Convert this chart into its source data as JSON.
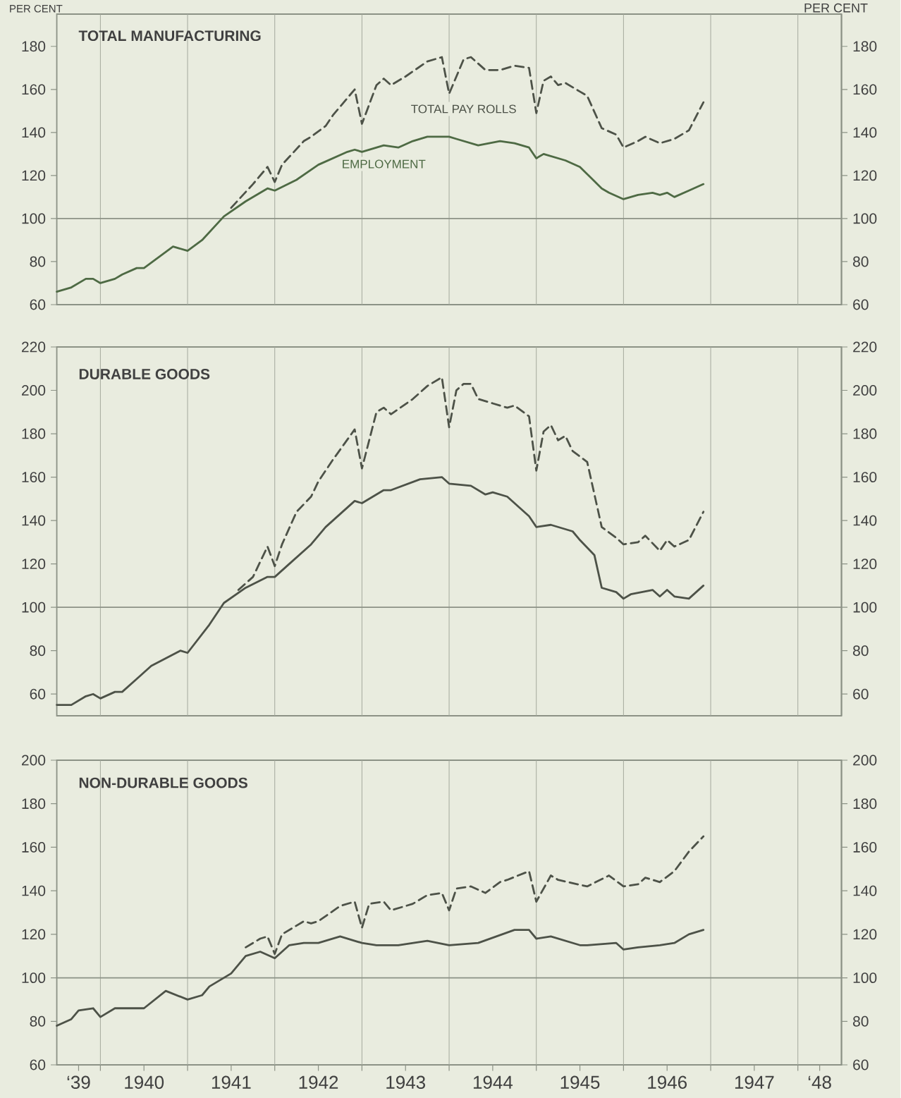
{
  "chart_data": [
    {
      "type": "line",
      "title": "TOTAL MANUFACTURING",
      "ylabel": "PER CENT",
      "y2label": "PER CENT",
      "xlim": [
        "1939-07",
        "1948-07"
      ],
      "ylim": [
        60,
        195
      ],
      "y2lim": [
        60,
        195
      ],
      "grid": "x",
      "tick_labels": "y",
      "xticks": [
        {
          "value": "1940-01",
          "label": null
        },
        {
          "value": "1941-01",
          "label": null
        },
        {
          "value": "1942-01",
          "label": null
        },
        {
          "value": "1943-01",
          "label": null
        },
        {
          "value": "1944-01",
          "label": null
        },
        {
          "value": "1945-01",
          "label": null
        },
        {
          "value": "1946-01",
          "label": null
        },
        {
          "value": "1947-01",
          "label": null
        },
        {
          "value": "1948-01",
          "label": null
        }
      ],
      "yticks": [
        60,
        80,
        100,
        120,
        140,
        160,
        180
      ],
      "y2ticks": [
        60,
        80,
        100,
        120,
        140,
        160,
        180
      ],
      "ref_lines": [
        {
          "axis": "y",
          "value": 100
        }
      ],
      "series": [
        {
          "name": "TOTAL PAY ROLLS",
          "color": "#4d5248",
          "line_style": "dashed",
          "x": [
            "1941-07",
            "1941-10",
            "1941-12",
            "1942-01",
            "1942-02",
            "1942-05",
            "1942-06",
            "1942-08",
            "1942-09",
            "1942-12",
            "1943-01",
            "1943-03",
            "1943-04",
            "1943-05",
            "1943-07",
            "1943-10",
            "1943-12",
            "1944-01",
            "1944-03",
            "1944-04",
            "1944-06",
            "1944-08",
            "1944-10",
            "1944-12",
            "1945-01",
            "1945-02",
            "1945-03",
            "1945-04",
            "1945-05",
            "1945-07",
            "1945-08",
            "1945-10",
            "1945-12",
            "1946-01",
            "1946-03",
            "1946-04",
            "1946-06",
            "1946-08",
            "1946-10",
            "1946-12"
          ],
          "values": [
            105,
            116,
            124,
            117,
            125,
            136,
            138,
            143,
            148,
            160,
            144,
            162,
            165,
            162,
            166,
            173,
            175,
            158,
            174,
            175,
            169,
            169,
            171,
            170,
            149,
            164,
            166,
            162,
            163,
            159,
            157,
            142,
            139,
            133,
            136,
            138,
            135,
            137,
            141,
            154
          ]
        },
        {
          "name": "EMPLOYMENT",
          "color": "#4e6a44",
          "line_style": "solid",
          "x": [
            "1939-07",
            "1939-09",
            "1939-11",
            "1939-12",
            "1940-01",
            "1940-03",
            "1940-04",
            "1940-06",
            "1940-07",
            "1940-09",
            "1940-11",
            "1941-01",
            "1941-03",
            "1941-06",
            "1941-09",
            "1941-12",
            "1942-01",
            "1942-04",
            "1942-07",
            "1942-11",
            "1942-12",
            "1943-01",
            "1943-04",
            "1943-06",
            "1943-08",
            "1943-10",
            "1944-01",
            "1944-02",
            "1944-05",
            "1944-08",
            "1944-10",
            "1944-12",
            "1945-01",
            "1945-02",
            "1945-05",
            "1945-07",
            "1945-10",
            "1945-11",
            "1946-01",
            "1946-03",
            "1946-05",
            "1946-06",
            "1946-07",
            "1946-08",
            "1946-10",
            "1946-12"
          ],
          "values": [
            66,
            68,
            72,
            72,
            70,
            72,
            74,
            77,
            77,
            82,
            87,
            85,
            90,
            101,
            108,
            114,
            113,
            118,
            125,
            131,
            132,
            131,
            134,
            133,
            136,
            138,
            138,
            137,
            134,
            136,
            135,
            133,
            128,
            130,
            127,
            124,
            114,
            112,
            109,
            111,
            112,
            111,
            112,
            110,
            113,
            116
          ]
        }
      ]
    },
    {
      "type": "line",
      "title": "DURABLE  GOODS",
      "xlim": [
        "1939-07",
        "1948-07"
      ],
      "ylim": [
        50,
        220
      ],
      "y2lim": [
        50,
        220
      ],
      "grid": "x",
      "tick_labels": "y",
      "xticks": [
        {
          "value": "1940-01",
          "label": null
        },
        {
          "value": "1941-01",
          "label": null
        },
        {
          "value": "1942-01",
          "label": null
        },
        {
          "value": "1943-01",
          "label": null
        },
        {
          "value": "1944-01",
          "label": null
        },
        {
          "value": "1945-01",
          "label": null
        },
        {
          "value": "1946-01",
          "label": null
        },
        {
          "value": "1947-01",
          "label": null
        },
        {
          "value": "1948-01",
          "label": null
        }
      ],
      "yticks": [
        60,
        80,
        100,
        120,
        140,
        160,
        180,
        200,
        220
      ],
      "y2ticks": [
        60,
        80,
        100,
        120,
        140,
        160,
        180,
        200,
        220
      ],
      "ref_lines": [
        {
          "axis": "y",
          "value": 100
        }
      ],
      "series": [
        {
          "color": "#4d5248",
          "line_style": "dashed",
          "x": [
            "1941-08",
            "1941-10",
            "1941-12",
            "1942-01",
            "1942-02",
            "1942-04",
            "1942-06",
            "1942-07",
            "1942-09",
            "1942-12",
            "1943-01",
            "1943-03",
            "1943-04",
            "1943-05",
            "1943-08",
            "1943-10",
            "1943-12",
            "1944-01",
            "1944-02",
            "1944-03",
            "1944-04",
            "1944-05",
            "1944-07",
            "1944-09",
            "1944-10",
            "1944-12",
            "1945-01",
            "1945-02",
            "1945-03",
            "1945-04",
            "1945-05",
            "1945-06",
            "1945-08",
            "1945-10",
            "1945-12",
            "1946-01",
            "1946-03",
            "1946-04",
            "1946-06",
            "1946-07",
            "1946-08",
            "1946-10",
            "1946-12"
          ],
          "values": [
            108,
            114,
            128,
            119,
            129,
            144,
            151,
            158,
            168,
            182,
            164,
            190,
            192,
            189,
            196,
            202,
            206,
            183,
            200,
            203,
            203,
            196,
            194,
            192,
            193,
            188,
            163,
            181,
            184,
            177,
            179,
            172,
            167,
            137,
            132,
            129,
            130,
            133,
            126,
            131,
            128,
            131,
            144
          ]
        },
        {
          "color": "#4d5248",
          "line_style": "solid",
          "x": [
            "1939-07",
            "1939-09",
            "1939-11",
            "1939-12",
            "1940-01",
            "1940-03",
            "1940-04",
            "1940-06",
            "1940-08",
            "1940-12",
            "1941-01",
            "1941-04",
            "1941-06",
            "1941-09",
            "1941-12",
            "1942-01",
            "1942-03",
            "1942-06",
            "1942-08",
            "1942-10",
            "1942-12",
            "1943-01",
            "1943-04",
            "1943-05",
            "1943-09",
            "1943-12",
            "1944-01",
            "1944-04",
            "1944-06",
            "1944-07",
            "1944-09",
            "1944-11",
            "1944-12",
            "1945-01",
            "1945-03",
            "1945-06",
            "1945-07",
            "1945-09",
            "1945-10",
            "1945-12",
            "1946-01",
            "1946-02",
            "1946-05",
            "1946-06",
            "1946-07",
            "1946-08",
            "1946-10",
            "1946-12"
          ],
          "values": [
            55,
            55,
            59,
            60,
            58,
            61,
            61,
            67,
            73,
            80,
            79,
            92,
            102,
            109,
            114,
            114,
            120,
            129,
            137,
            143,
            149,
            148,
            154,
            154,
            159,
            160,
            157,
            156,
            152,
            153,
            151,
            145,
            142,
            137,
            138,
            135,
            131,
            124,
            109,
            107,
            104,
            106,
            108,
            105,
            108,
            105,
            104,
            110
          ]
        }
      ]
    },
    {
      "type": "line",
      "title": "NON-DURABLE  GOODS",
      "xlim": [
        "1939-07",
        "1948-07"
      ],
      "ylim": [
        60,
        200
      ],
      "y2lim": [
        60,
        200
      ],
      "grid": "x",
      "xticks": [
        {
          "value": "1939-10",
          "label": "‘39"
        },
        {
          "value": "1940-01",
          "label": null
        },
        {
          "value": "1940-07",
          "label": "1940"
        },
        {
          "value": "1941-01",
          "label": null
        },
        {
          "value": "1941-07",
          "label": "1941"
        },
        {
          "value": "1942-01",
          "label": null
        },
        {
          "value": "1942-07",
          "label": "1942"
        },
        {
          "value": "1943-01",
          "label": null
        },
        {
          "value": "1943-07",
          "label": "1943"
        },
        {
          "value": "1944-01",
          "label": null
        },
        {
          "value": "1944-07",
          "label": "1944"
        },
        {
          "value": "1945-01",
          "label": null
        },
        {
          "value": "1945-07",
          "label": "1945"
        },
        {
          "value": "1946-01",
          "label": null
        },
        {
          "value": "1946-07",
          "label": "1946"
        },
        {
          "value": "1947-01",
          "label": null
        },
        {
          "value": "1947-07",
          "label": "1947"
        },
        {
          "value": "1948-01",
          "label": null
        },
        {
          "value": "1948-04",
          "label": "‘48"
        }
      ],
      "yticks": [
        60,
        80,
        100,
        120,
        140,
        160,
        180,
        200
      ],
      "y2ticks": [
        60,
        80,
        100,
        120,
        140,
        160,
        180,
        200
      ],
      "ref_lines": [
        {
          "axis": "y",
          "value": 100
        }
      ],
      "series": [
        {
          "color": "#4d5248",
          "line_style": "dashed",
          "x": [
            "1941-09",
            "1941-11",
            "1941-12",
            "1942-01",
            "1942-02",
            "1942-05",
            "1942-06",
            "1942-07",
            "1942-10",
            "1942-12",
            "1943-01",
            "1943-02",
            "1943-04",
            "1943-05",
            "1943-08",
            "1943-10",
            "1943-12",
            "1944-01",
            "1944-02",
            "1944-04",
            "1944-06",
            "1944-08",
            "1944-09",
            "1944-12",
            "1945-01",
            "1945-03",
            "1945-04",
            "1945-08",
            "1945-11",
            "1946-01",
            "1946-03",
            "1946-04",
            "1946-06",
            "1946-08",
            "1946-10",
            "1946-12"
          ],
          "values": [
            114,
            118,
            119,
            111,
            120,
            126,
            125,
            126,
            133,
            135,
            123,
            134,
            135,
            131,
            134,
            138,
            139,
            131,
            141,
            142,
            139,
            144,
            145,
            149,
            135,
            147,
            145,
            142,
            147,
            142,
            143,
            146,
            144,
            149,
            158,
            165
          ]
        },
        {
          "color": "#4d5248",
          "line_style": "solid",
          "x": [
            "1939-07",
            "1939-09",
            "1939-10",
            "1939-12",
            "1940-01",
            "1940-03",
            "1940-05",
            "1940-07",
            "1940-10",
            "1941-01",
            "1941-03",
            "1941-04",
            "1941-07",
            "1941-09",
            "1941-11",
            "1942-01",
            "1942-03",
            "1942-05",
            "1942-07",
            "1942-10",
            "1943-01",
            "1943-03",
            "1943-06",
            "1943-10",
            "1944-01",
            "1944-05",
            "1944-10",
            "1944-12",
            "1945-01",
            "1945-03",
            "1945-07",
            "1945-08",
            "1945-12",
            "1946-01",
            "1946-03",
            "1946-06",
            "1946-08",
            "1946-10",
            "1946-12"
          ],
          "values": [
            78,
            81,
            85,
            86,
            82,
            86,
            86,
            86,
            94,
            90,
            92,
            96,
            102,
            110,
            112,
            109,
            115,
            116,
            116,
            119,
            116,
            115,
            115,
            117,
            115,
            116,
            122,
            122,
            118,
            119,
            115,
            115,
            116,
            113,
            114,
            115,
            116,
            120,
            122
          ]
        }
      ]
    }
  ]
}
